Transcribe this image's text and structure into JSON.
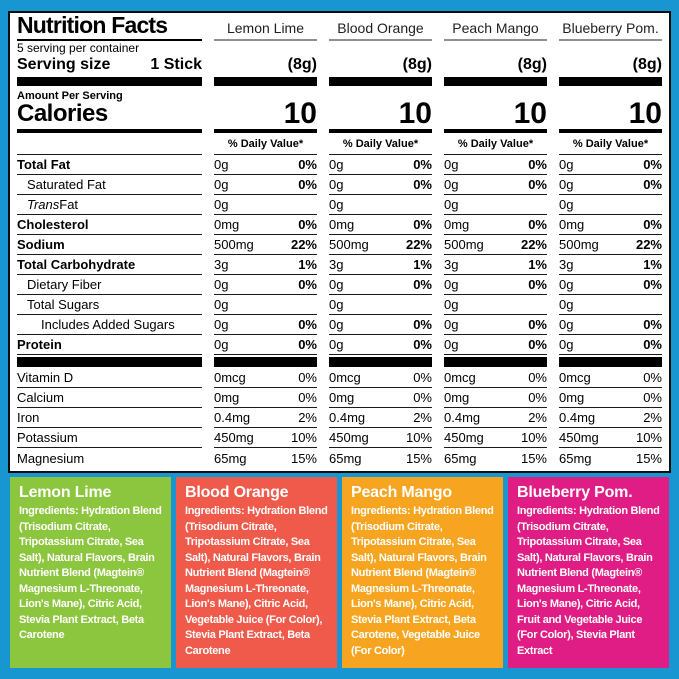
{
  "colors": {
    "background_blue": "#1796d2",
    "lemon_lime_green": "#8cc63e",
    "blood_orange_red": "#f05a4b",
    "peach_mango_orange": "#f7a521",
    "blueberry_pom_pink": "#e01d84"
  },
  "panel": {
    "title": "Nutrition Facts",
    "servings_line": "5 serving per container",
    "serving_size_label": "Serving size",
    "serving_size_value": "1 Stick",
    "amount_per_serving": "Amount Per Serving",
    "calories_label": "Calories",
    "daily_value_header": "% Daily Value*",
    "flavors": [
      {
        "name": "Lemon Lime",
        "serving": "(8g)",
        "calories": "10"
      },
      {
        "name": "Blood Orange",
        "serving": "(8g)",
        "calories": "10"
      },
      {
        "name": "Peach Mango",
        "serving": "(8g)",
        "calories": "10"
      },
      {
        "name": "Blueberry Pom.",
        "serving": "(8g)",
        "calories": "10"
      }
    ],
    "rows": [
      {
        "label": "Total Fat",
        "bold": true,
        "indent": 0,
        "amount": "0g",
        "pct": "0%",
        "pct_bold": true
      },
      {
        "label": "Saturated Fat",
        "bold": false,
        "indent": 1,
        "amount": "0g",
        "pct": "0%",
        "pct_bold": true
      },
      {
        "label": " Fat",
        "italic_prefix": "Trans",
        "bold": false,
        "indent": 1,
        "amount": "0g",
        "pct": "",
        "pct_bold": false
      },
      {
        "label": "Cholesterol",
        "bold": true,
        "indent": 0,
        "amount": "0mg",
        "pct": "0%",
        "pct_bold": true
      },
      {
        "label": "Sodium",
        "bold": true,
        "indent": 0,
        "amount": "500mg",
        "pct": "22%",
        "pct_bold": true
      },
      {
        "label": "Total Carbohydrate",
        "bold": true,
        "indent": 0,
        "amount": "3g",
        "pct": "1%",
        "pct_bold": true
      },
      {
        "label": "Dietary Fiber",
        "bold": false,
        "indent": 1,
        "amount": "0g",
        "pct": "0%",
        "pct_bold": true
      },
      {
        "label": "Total Sugars",
        "bold": false,
        "indent": 1,
        "amount": "0g",
        "pct": "",
        "pct_bold": false
      },
      {
        "label": "Includes Added Sugars",
        "bold": false,
        "indent": 2,
        "amount": "0g",
        "pct": "0%",
        "pct_bold": true
      },
      {
        "label": "Protein",
        "bold": true,
        "indent": 0,
        "amount": "0g",
        "pct": "0%",
        "pct_bold": true
      },
      {
        "label": "Vitamin D",
        "bold": false,
        "indent": 0,
        "amount": "0mcg",
        "pct": "0%",
        "pct_bold": false
      },
      {
        "label": "Calcium",
        "bold": false,
        "indent": 0,
        "amount": "0mg",
        "pct": "0%",
        "pct_bold": false
      },
      {
        "label": "Iron",
        "bold": false,
        "indent": 0,
        "amount": "0.4mg",
        "pct": "2%",
        "pct_bold": false
      },
      {
        "label": "Potassium",
        "bold": false,
        "indent": 0,
        "amount": "450mg",
        "pct": "10%",
        "pct_bold": false
      },
      {
        "label": "Magnesium",
        "bold": false,
        "indent": 0,
        "amount": "65mg",
        "pct": "15%",
        "pct_bold": false
      }
    ]
  },
  "ingredients_panels": [
    {
      "flavor": "Lemon Lime",
      "color": "#8cc63e",
      "label": "Ingredients:",
      "text": "Hydration Blend (Trisodium Citrate, Tripotassium Citrate, Sea Salt), Natural Flavors, Brain Nutrient Blend (Magtein® Magnesium L-Threonate, Lion's Mane), Citric Acid, Stevia Plant Extract, Beta Carotene"
    },
    {
      "flavor": "Blood Orange",
      "color": "#f05a4b",
      "label": "Ingredients:",
      "text": "Hydration Blend (Trisodium Citrate, Tripotassium Citrate, Sea Salt), Natural Flavors, Brain Nutrient Blend (Magtein® Magnesium L-Threonate, Lion's Mane), Citric Acid, Vegetable Juice (For Color), Stevia Plant Extract, Beta Carotene"
    },
    {
      "flavor": "Peach Mango",
      "color": "#f7a521",
      "label": "Ingredients:",
      "text": "Hydration Blend (Trisodium Citrate, Tripotassium Citrate, Sea Salt), Natural Flavors, Brain Nutrient Blend (Magtein® Magnesium L-Threonate, Lion's Mane), Citric Acid, Stevia Plant Extract, Beta Carotene, Vegetable Juice (For Color)"
    },
    {
      "flavor": "Blueberry Pom.",
      "color": "#e01d84",
      "label": "Ingredients:",
      "text": "Hydration Blend (Trisodium Citrate, Tripotassium Citrate, Sea Salt), Natural Flavors, Brain Nutrient Blend (Magtein® Magnesium L-Threonate, Lion's Mane), Citric Acid, Fruit and Vegetable Juice (For Color), Stevia Plant Extract"
    }
  ]
}
